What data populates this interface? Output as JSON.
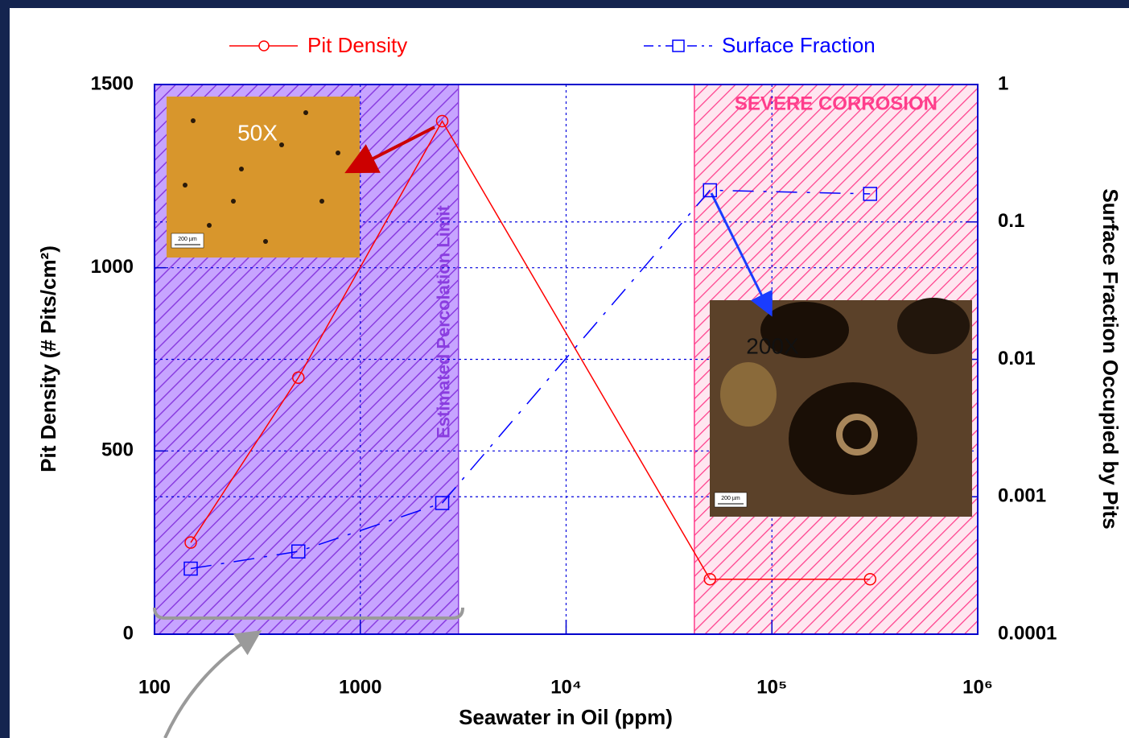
{
  "chart_data": {
    "type": "line",
    "xlabel": "Seawater in Oil (ppm)",
    "ylabel": "Pit Density (# Pits/cm²)",
    "y2label": "Surface Fraction Occupied by Pits",
    "x": [
      150,
      500,
      2500,
      50000,
      300000
    ],
    "series": [
      {
        "name": "Pit Density",
        "color": "#ff0000",
        "marker": "circle",
        "dash": "solid",
        "values": [
          250,
          700,
          1400,
          150,
          150
        ]
      },
      {
        "name": "Surface Fraction",
        "color": "#0000ff",
        "marker": "square",
        "dash": "dashdot",
        "axis": "y2",
        "values": [
          0.0003,
          0.0004,
          0.0009,
          0.17,
          0.16
        ]
      }
    ],
    "xscale": "log",
    "y2scale": "log",
    "xlim": [
      100,
      1000000
    ],
    "xticks": [
      100,
      1000,
      {
        "value": 10000,
        "label": "10⁴"
      },
      {
        "value": 100000,
        "label": "10⁵"
      },
      {
        "value": 1000000,
        "label": "10⁶"
      }
    ],
    "ylim": [
      0,
      1500
    ],
    "yticks": [
      0,
      500,
      1000,
      1500
    ],
    "y2lim": [
      0.0001,
      1
    ],
    "y2ticks": [
      0.0001,
      0.001,
      0.01,
      0.1,
      1
    ],
    "grid": true,
    "regions": [
      {
        "label": "Estimated Percolation Limit",
        "xlim": [
          100,
          3000
        ],
        "color": "#8a3de0"
      },
      {
        "label": "SEVERE CORROSION",
        "xlim": [
          42000,
          1000000
        ],
        "color": "#ff3d8b"
      }
    ],
    "insets": [
      {
        "label": "50X",
        "scale_label": "200 µm"
      },
      {
        "label": "200X",
        "scale_label": "200 µm"
      }
    ]
  }
}
